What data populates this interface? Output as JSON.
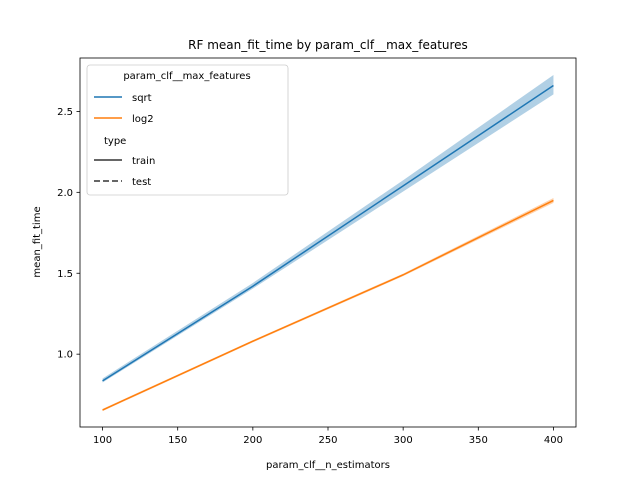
{
  "chart_data": {
    "type": "line",
    "title": "RF mean_fit_time by param_clf__max_features",
    "xlabel": "param_clf__n_estimators",
    "ylabel": "mean_fit_time",
    "xlim": [
      85,
      415
    ],
    "ylim": [
      0.55,
      2.83
    ],
    "xticks": [
      100,
      150,
      200,
      250,
      300,
      350,
      400
    ],
    "yticks": [
      1.0,
      1.5,
      2.0,
      2.5
    ],
    "x": [
      100,
      200,
      300,
      400
    ],
    "series": [
      {
        "name": "sqrt",
        "color": "#1f77b4",
        "values": [
          0.835,
          1.42,
          2.04,
          2.66
        ],
        "ci_low": [
          0.825,
          1.405,
          2.005,
          2.605
        ],
        "ci_high": [
          0.85,
          1.44,
          2.075,
          2.725
        ]
      },
      {
        "name": "log2",
        "color": "#ff7f0e",
        "values": [
          0.655,
          1.08,
          1.49,
          1.95
        ],
        "ci_low": [
          0.648,
          1.073,
          1.482,
          1.935
        ],
        "ci_high": [
          0.662,
          1.087,
          1.498,
          1.965
        ]
      }
    ],
    "legend": {
      "placement": "upper-left",
      "hue_title": "param_clf__max_features",
      "style_title": "type",
      "style_entries": [
        {
          "name": "train",
          "dash": "solid"
        },
        {
          "name": "test",
          "dash": "dashed"
        }
      ]
    },
    "grid": false
  }
}
